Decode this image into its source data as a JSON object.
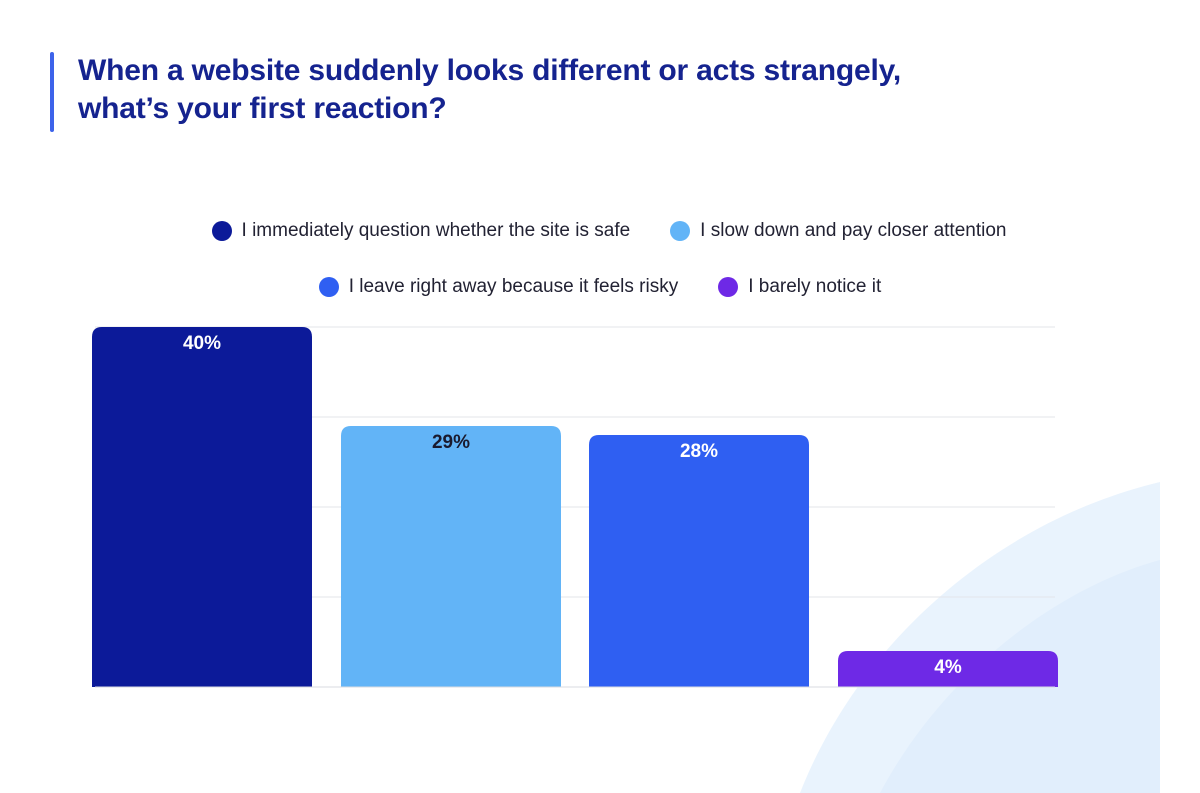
{
  "title": {
    "lines": [
      "When a website suddenly looks different or acts strangely,",
      "what’s your first reaction?"
    ],
    "color": "#15238f",
    "accent_color": "#3d63ea"
  },
  "chart_data": {
    "type": "bar",
    "categories": [
      "I immediately question whether the site is safe",
      "I slow down and pay closer attention",
      "I leave right away because it feels risky",
      "I barely notice it"
    ],
    "values": [
      40,
      29,
      28,
      4
    ],
    "value_labels": [
      "40%",
      "29%",
      "28%",
      "4%"
    ],
    "colors": [
      "#0c1a99",
      "#62b4f7",
      "#2f5ff2",
      "#6e29e6"
    ],
    "label_colors": [
      "#ffffff",
      "#1a1a2e",
      "#ffffff",
      "#ffffff"
    ],
    "title": "",
    "xlabel": "",
    "ylabel": "",
    "ylim": [
      0,
      40
    ],
    "grid": true,
    "legend_placement": "top-center"
  },
  "legend": {
    "row1": [
      {
        "label": "I immediately question whether the site is safe",
        "color": "#0c1a99"
      },
      {
        "label": "I slow down and pay closer attention",
        "color": "#62b4f7"
      }
    ],
    "row2": [
      {
        "label": "I leave right away because it feels risky",
        "color": "#2f5ff2"
      },
      {
        "label": "I barely notice it",
        "color": "#6e29e6"
      }
    ]
  }
}
